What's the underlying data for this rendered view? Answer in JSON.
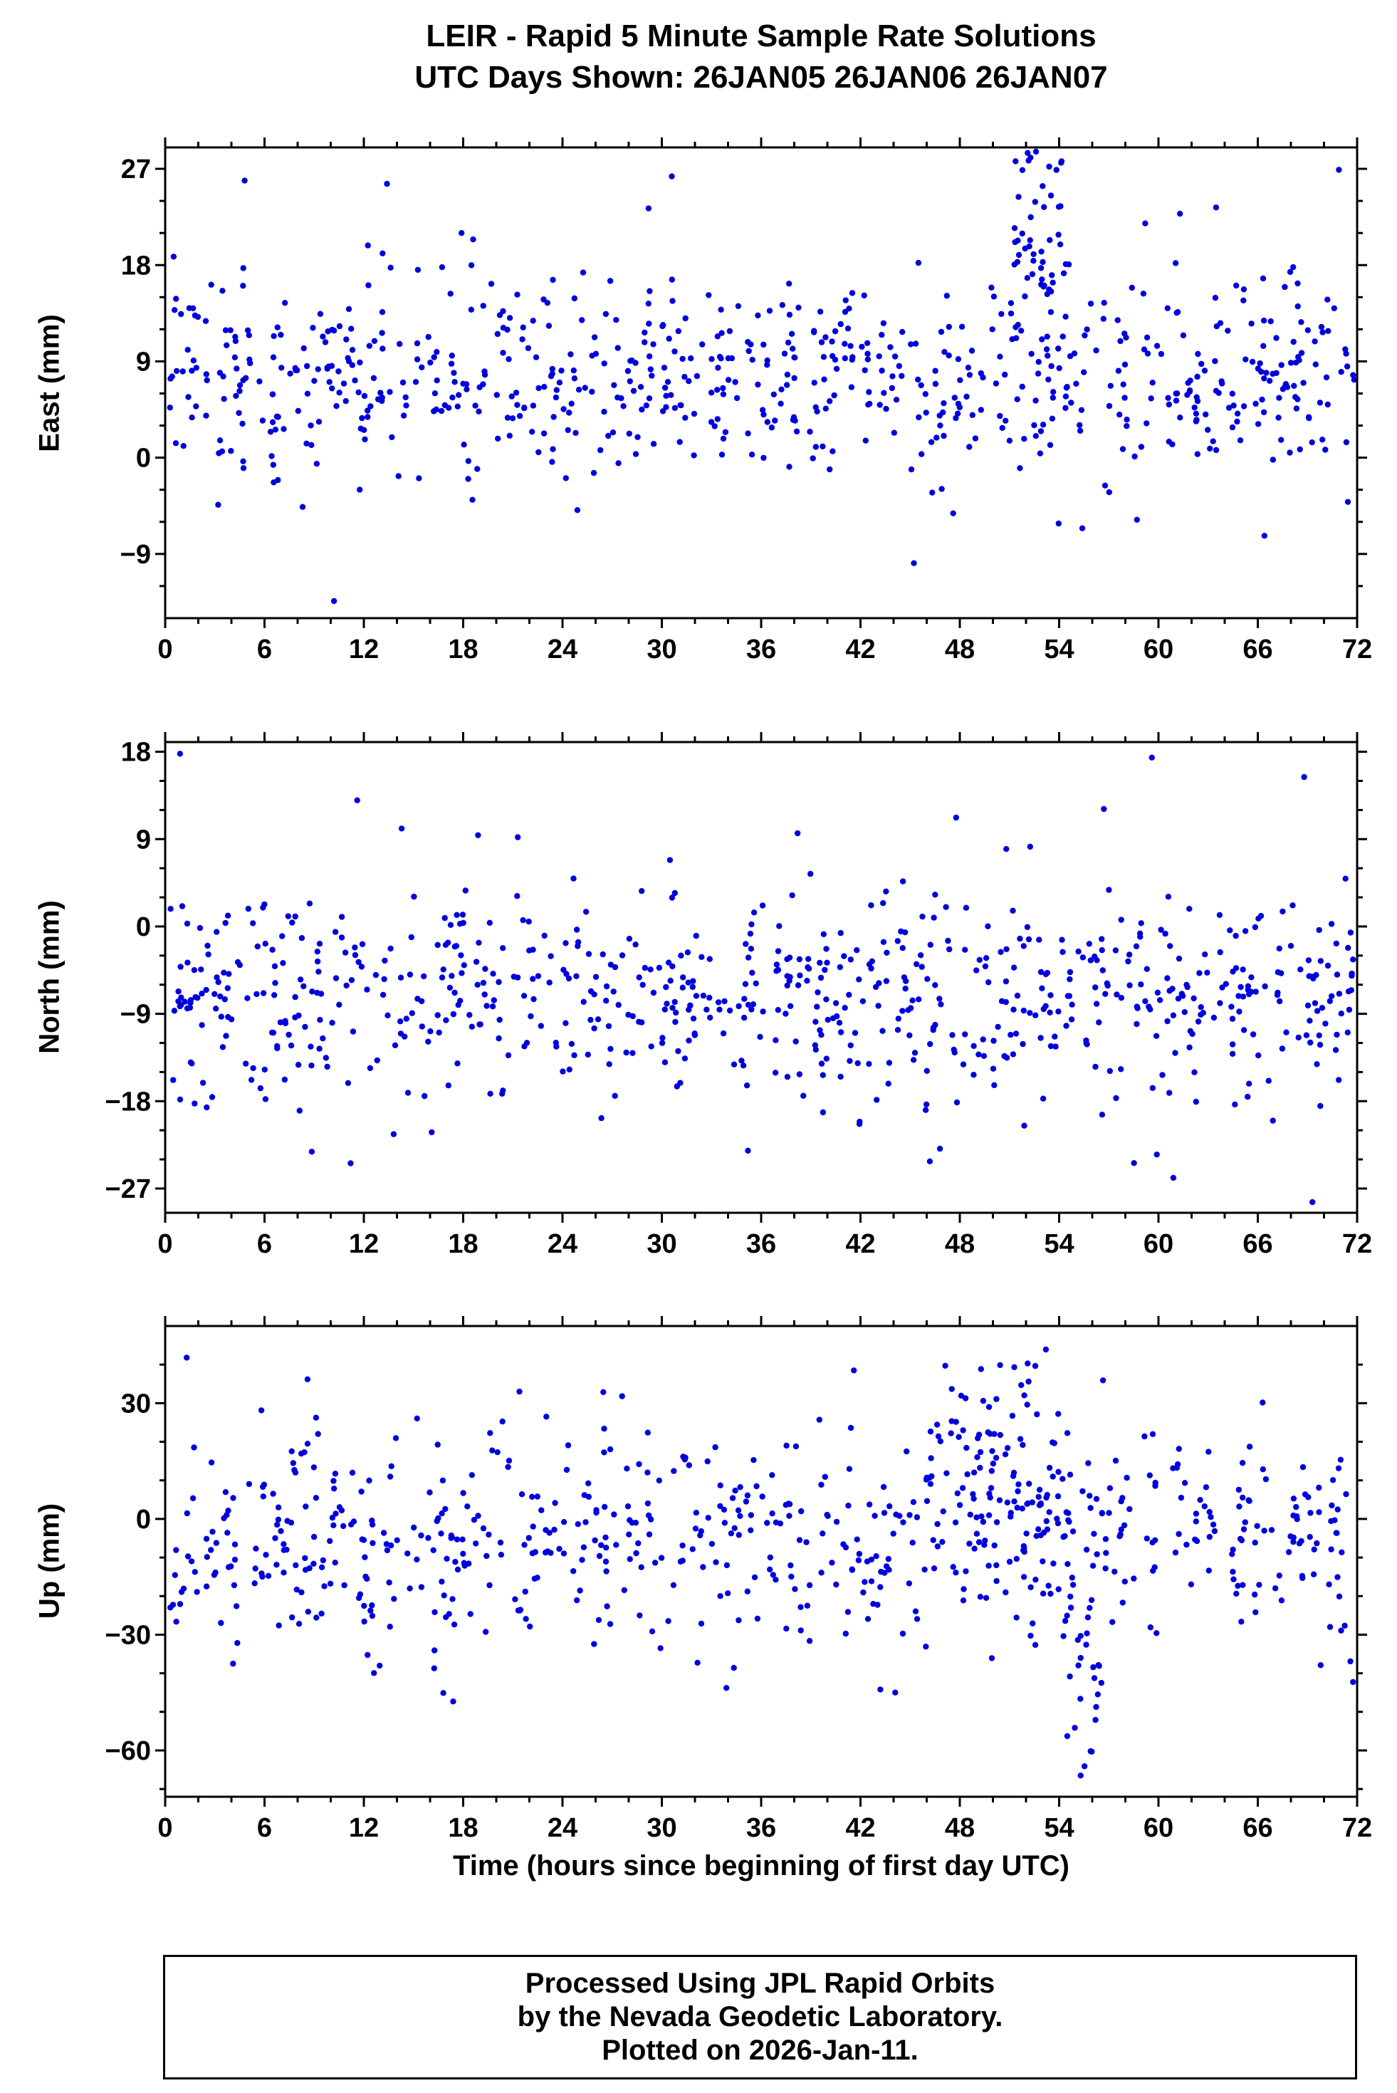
{
  "title": {
    "line1": "LEIR - Rapid 5 Minute Sample Rate Solutions",
    "line2": "UTC Days Shown:  26JAN05 26JAN06 26JAN07"
  },
  "xlabel": "Time (hours since beginning of first day UTC)",
  "footer": {
    "line1": "Processed Using JPL Rapid Orbits",
    "line2": "by the Nevada Geodetic Laboratory.",
    "line3": "Plotted on 2026-Jan-11."
  },
  "marker_color": "#0000dd",
  "chart_data": [
    {
      "type": "scatter",
      "name": "East",
      "ylabel": "East (mm)",
      "xlabel": "",
      "xlim": [
        0,
        72
      ],
      "ylim": [
        -15,
        29
      ],
      "xticks": [
        0,
        6,
        12,
        18,
        24,
        30,
        36,
        42,
        48,
        54,
        60,
        66,
        72
      ],
      "yticks": [
        -9,
        0,
        9,
        18,
        27
      ],
      "x_minor_step": 2,
      "y_minor_step": 3,
      "color": "#0000dd",
      "generator": {
        "seed": 11,
        "n": 720,
        "x_min": 0.15,
        "x_max": 71.85,
        "mean": 7.5,
        "std": 4.6,
        "y_clip": [
          -13.5,
          28.6
        ],
        "clusters": [
          {
            "x": [
              51.0,
              54.5
            ],
            "y": [
              14.0,
              28.5
            ],
            "n": 45
          }
        ],
        "outliers": [
          [
            4.8,
            25.9
          ],
          [
            13.4,
            25.6
          ],
          [
            30.6,
            26.3
          ],
          [
            29.2,
            23.3
          ],
          [
            52.6,
            28.6
          ],
          [
            53.4,
            27.2
          ],
          [
            70.9,
            26.9
          ],
          [
            61.3,
            22.8
          ],
          [
            59.2,
            21.9
          ],
          [
            17.9,
            21.0
          ],
          [
            18.6,
            20.4
          ],
          [
            10.2,
            -13.4
          ],
          [
            66.4,
            -7.3
          ],
          [
            55.4,
            -6.6
          ],
          [
            58.7,
            -5.8
          ],
          [
            47.6,
            -5.2
          ],
          [
            24.9,
            -4.9
          ],
          [
            8.3,
            -4.6
          ],
          [
            3.2,
            -4.4
          ]
        ]
      }
    },
    {
      "type": "scatter",
      "name": "North",
      "ylabel": "North (mm)",
      "xlabel": "",
      "xlim": [
        0,
        72
      ],
      "ylim": [
        -29.5,
        19
      ],
      "xticks": [
        0,
        6,
        12,
        18,
        24,
        30,
        36,
        42,
        48,
        54,
        60,
        66,
        72
      ],
      "yticks": [
        -27,
        -18,
        -9,
        0,
        9,
        18
      ],
      "x_minor_step": 2,
      "y_minor_step": 3,
      "color": "#0000dd",
      "generator": {
        "seed": 22,
        "n": 720,
        "x_min": 0.15,
        "x_max": 71.85,
        "mean": -7.0,
        "std": 5.2,
        "y_clip": [
          -28.5,
          18.0
        ],
        "clusters": [],
        "outliers": [
          [
            0.9,
            17.8
          ],
          [
            59.6,
            17.4
          ],
          [
            68.8,
            15.4
          ],
          [
            11.6,
            13.0
          ],
          [
            56.7,
            12.1
          ],
          [
            18.9,
            9.4
          ],
          [
            21.3,
            9.2
          ],
          [
            38.2,
            9.6
          ],
          [
            11.2,
            -24.4
          ],
          [
            60.9,
            -25.9
          ],
          [
            69.3,
            -28.4
          ],
          [
            35.2,
            -23.1
          ],
          [
            46.8,
            -22.9
          ],
          [
            13.8,
            -21.4
          ],
          [
            16.1,
            -21.2
          ],
          [
            59.9,
            -23.5
          ]
        ]
      }
    },
    {
      "type": "scatter",
      "name": "Up",
      "ylabel": "Up (mm)",
      "xlabel": "Time (hours since beginning of first day UTC)",
      "xlim": [
        0,
        72
      ],
      "ylim": [
        -72,
        50
      ],
      "xticks": [
        0,
        6,
        12,
        18,
        24,
        30,
        36,
        42,
        48,
        54,
        60,
        66,
        72
      ],
      "yticks": [
        -60,
        -30,
        0,
        30
      ],
      "x_minor_step": 2,
      "y_minor_step": 10,
      "color": "#0000dd",
      "generator": {
        "seed": 33,
        "n": 660,
        "x_min": 0.15,
        "x_max": 71.85,
        "mean": -6.0,
        "std": 14.0,
        "y_clip": [
          -66.0,
          45.0
        ],
        "clusters": [
          {
            "x": [
              46.0,
              54.0
            ],
            "y": [
              0.0,
              40.0
            ],
            "n": 70
          },
          {
            "x": [
              54.2,
              56.6
            ],
            "y": [
              -66.0,
              -25.0
            ],
            "n": 22
          }
        ],
        "outliers": [
          [
            1.3,
            41.8
          ],
          [
            8.6,
            36.2
          ],
          [
            21.4,
            33.0
          ],
          [
            27.6,
            31.8
          ],
          [
            52.1,
            40.3
          ],
          [
            53.2,
            43.9
          ],
          [
            16.8,
            -45.1
          ],
          [
            17.4,
            -47.3
          ],
          [
            44.1,
            -45.0
          ],
          [
            43.2,
            -44.2
          ],
          [
            55.3,
            -66.5
          ],
          [
            55.9,
            -60.2
          ],
          [
            33.9,
            -43.8
          ],
          [
            4.1,
            -37.5
          ],
          [
            69.8,
            -37.9
          ]
        ]
      }
    }
  ]
}
